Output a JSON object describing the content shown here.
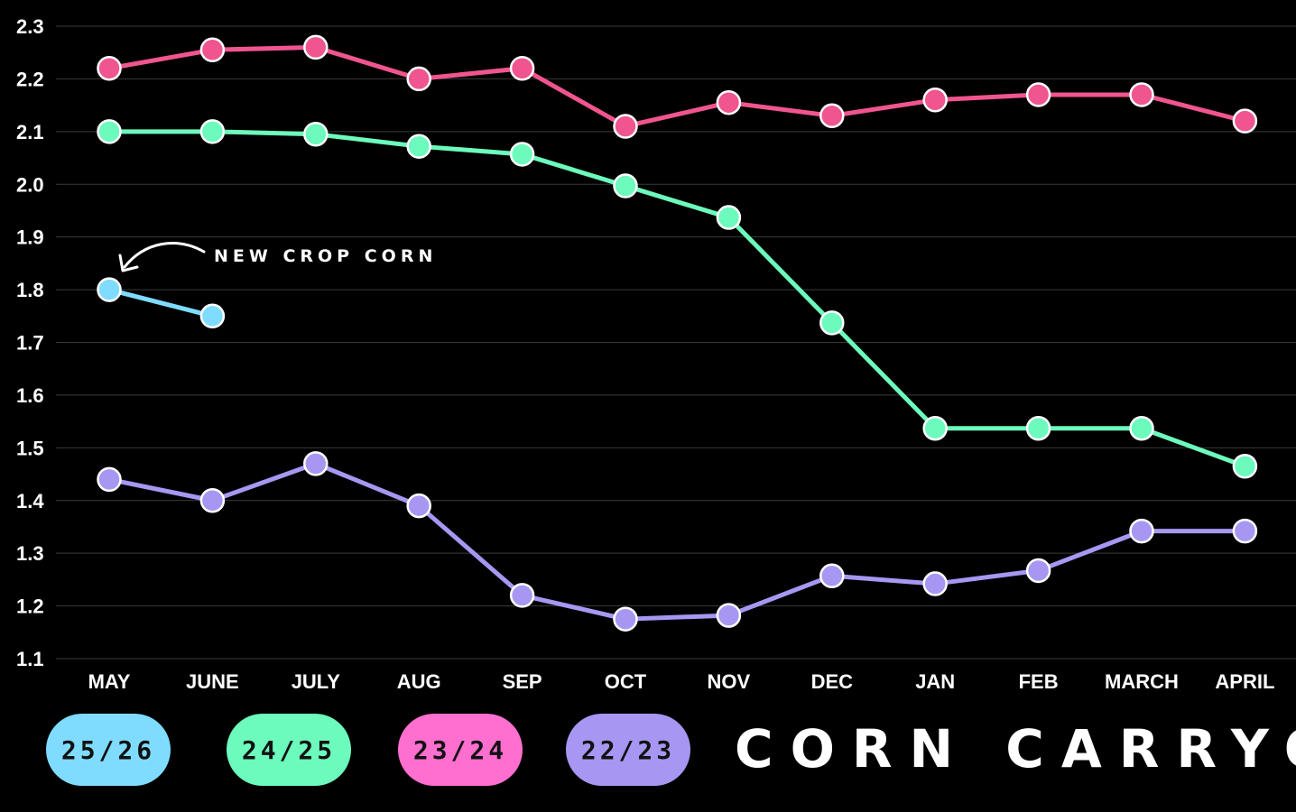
{
  "chart_data": {
    "type": "line",
    "title": "CORN CARRYOUT",
    "categories": [
      "MAY",
      "JUNE",
      "JULY",
      "AUG",
      "SEP",
      "OCT",
      "NOV",
      "DEC",
      "JAN",
      "FEB",
      "MARCH",
      "APRIL"
    ],
    "yticks": [
      "2.3",
      "2.2",
      "2.1",
      "2.0",
      "1.9",
      "1.8",
      "1.7",
      "1.6",
      "1.5",
      "1.4",
      "1.3",
      "1.2",
      "1.1"
    ],
    "ylim": [
      1.1,
      2.3
    ],
    "grid": true,
    "legend_position": "bottom-left",
    "annotation": {
      "text": "NEW CROP CORN",
      "series": "25/26",
      "category": "MAY"
    },
    "series": [
      {
        "name": "25/26",
        "color": "#7fdcff",
        "values": [
          1.8,
          1.75,
          null,
          null,
          null,
          null,
          null,
          null,
          null,
          null,
          null,
          null
        ]
      },
      {
        "name": "24/25",
        "color": "#6cfbbd",
        "values": [
          2.1,
          2.1,
          2.095,
          2.072,
          2.057,
          1.997,
          1.937,
          1.737,
          1.537,
          1.537,
          1.537,
          1.465
        ]
      },
      {
        "name": "23/24",
        "color": "#f0558f",
        "values": [
          2.22,
          2.255,
          2.26,
          2.2,
          2.22,
          2.11,
          2.155,
          2.13,
          2.16,
          2.17,
          2.17,
          2.12
        ]
      },
      {
        "name": "22/23",
        "color": "#a797f2",
        "values": [
          1.44,
          1.4,
          1.47,
          1.39,
          1.22,
          1.175,
          1.182,
          1.257,
          1.242,
          1.267,
          1.342,
          1.342
        ]
      }
    ]
  },
  "legend": [
    {
      "label": "25/26",
      "color": "#7fdcff"
    },
    {
      "label": "24/25",
      "color": "#6cfbbd"
    },
    {
      "label": "23/24",
      "color": "#ff6fd0"
    },
    {
      "label": "22/23",
      "color": "#a797f2"
    }
  ]
}
